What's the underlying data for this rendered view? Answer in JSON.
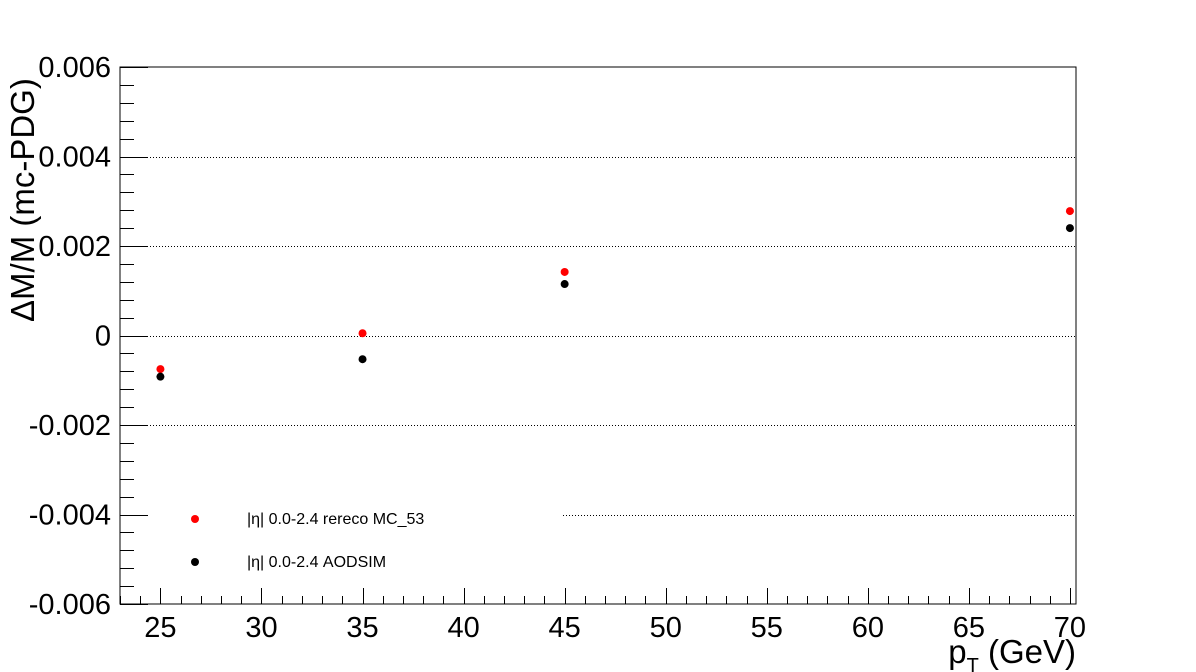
{
  "chart_data": {
    "type": "scatter",
    "xlabel": "p_T (GeV)",
    "ylabel": "ΔM/M (mc-PDG)",
    "xlim": [
      23,
      70.3
    ],
    "ylim": [
      -0.006,
      0.006
    ],
    "x_ticks": [
      25,
      30,
      35,
      40,
      45,
      50,
      55,
      60,
      65,
      70
    ],
    "x_tick_labels": [
      "25",
      "30",
      "35",
      "40",
      "45",
      "50",
      "55",
      "60",
      "65",
      "70"
    ],
    "y_ticks": [
      -0.006,
      -0.004,
      -0.002,
      0,
      0.002,
      0.004,
      0.006
    ],
    "y_tick_labels": [
      "-0.006",
      "-0.004",
      "-0.002",
      "0",
      "0.002",
      "0.004",
      "0.006"
    ],
    "grid": "horizontal dotted",
    "legend_position": "bottom-left",
    "series": [
      {
        "name": "|η| 0.0-2.4 rereco MC_53",
        "color": "#ff0000",
        "x": [
          25,
          35,
          45,
          70
        ],
        "y": [
          -0.00075,
          5e-05,
          0.00142,
          0.00278
        ]
      },
      {
        "name": "|η| 0.0-2.4 AODSIM",
        "color": "#000000",
        "x": [
          25,
          35,
          45,
          70
        ],
        "y": [
          -0.00092,
          -0.00053,
          0.00115,
          0.0024
        ]
      }
    ]
  }
}
